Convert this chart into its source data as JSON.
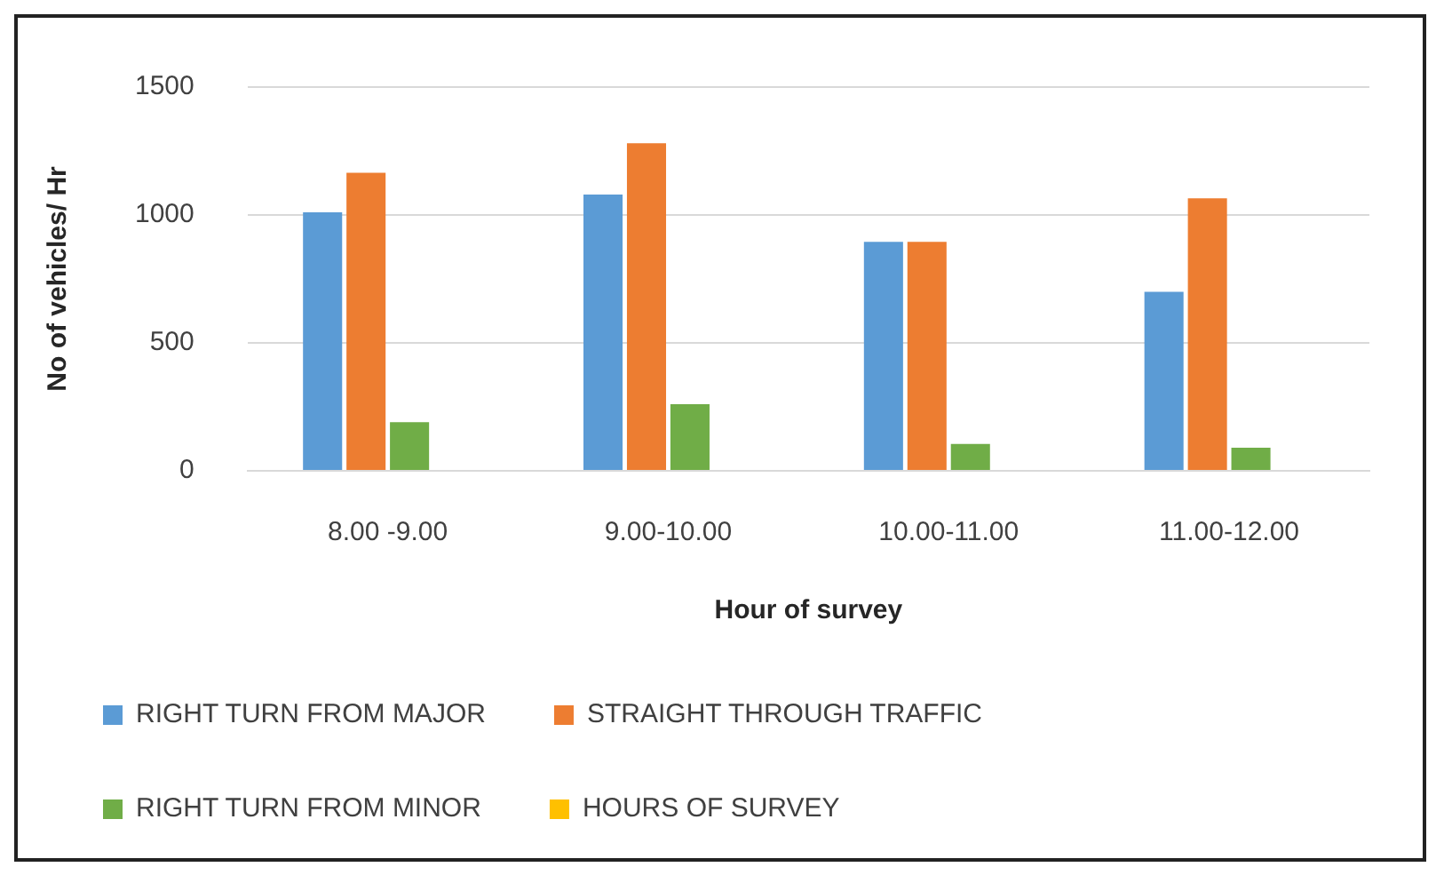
{
  "chart_data": {
    "type": "bar",
    "xlabel": "Hour of survey",
    "ylabel": "No of vehicles/ Hr",
    "categories": [
      "8.00 -9.00",
      "9.00-10.00",
      "10.00-11.00",
      "11.00-12.00"
    ],
    "series": [
      {
        "name": "RIGHT TURN FROM MAJOR",
        "color": "#5b9bd5",
        "values": [
          1010,
          1080,
          895,
          700
        ]
      },
      {
        "name": "STRAIGHT THROUGH TRAFFIC",
        "color": "#ed7d31",
        "values": [
          1165,
          1280,
          895,
          1065
        ]
      },
      {
        "name": "RIGHT TURN FROM MINOR",
        "color": "#70ad47",
        "values": [
          190,
          260,
          105,
          90
        ]
      },
      {
        "name": "HOURS OF SURVEY",
        "color": "#ffc000",
        "values": [
          null,
          null,
          null,
          null
        ]
      }
    ],
    "ylim": [
      0,
      1500
    ],
    "yticks": [
      0,
      500,
      1000,
      1500
    ],
    "grid": "y",
    "legend": "bottom"
  }
}
